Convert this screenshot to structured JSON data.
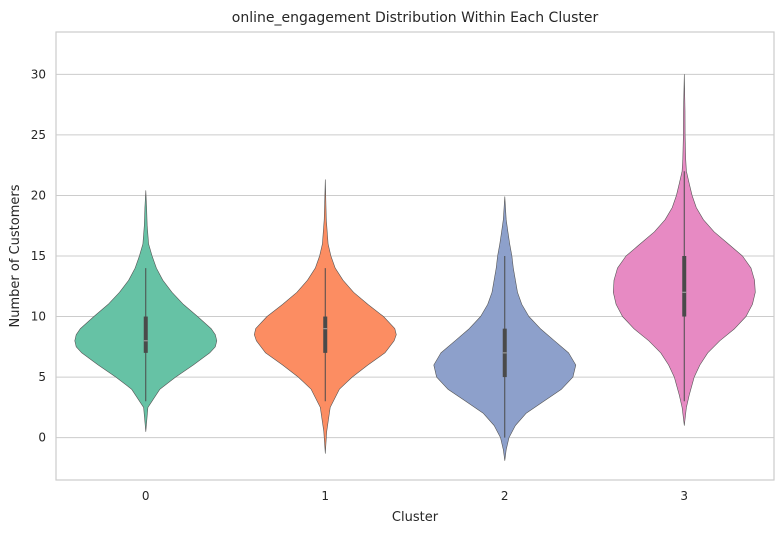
{
  "chart_data": {
    "type": "violin",
    "title": "online_engagement Distribution Within Each Cluster",
    "xlabel": "Cluster",
    "ylabel": "Number of Customers",
    "categories": [
      "0",
      "1",
      "2",
      "3"
    ],
    "ylim": [
      -3.5,
      33.5
    ],
    "yticks": [
      0,
      5,
      10,
      15,
      20,
      25,
      30
    ],
    "grid": true,
    "legend": "none",
    "violins": [
      {
        "category": "0",
        "color": "#66c2a5",
        "box": {
          "q1": 7,
          "median": 8,
          "q3": 10,
          "whisker_low": 3,
          "whisker_high": 14
        },
        "profile": [
          [
            0.5,
            0
          ],
          [
            2.5,
            0.03
          ],
          [
            4,
            0.2
          ],
          [
            5,
            0.42
          ],
          [
            6,
            0.67
          ],
          [
            7,
            0.9
          ],
          [
            7.5,
            0.98
          ],
          [
            8,
            1
          ],
          [
            8.5,
            0.98
          ],
          [
            9,
            0.92
          ],
          [
            10,
            0.73
          ],
          [
            11,
            0.53
          ],
          [
            12,
            0.37
          ],
          [
            13,
            0.24
          ],
          [
            14,
            0.15
          ],
          [
            15,
            0.09
          ],
          [
            16,
            0.04
          ],
          [
            17.5,
            0.02
          ],
          [
            19,
            0.012
          ],
          [
            20.4,
            0
          ]
        ]
      },
      {
        "category": "1",
        "color": "#fc8d62",
        "box": {
          "q1": 7,
          "median": 9,
          "q3": 10,
          "whisker_low": 3,
          "whisker_high": 14
        },
        "profile": [
          [
            -1.3,
            0
          ],
          [
            0.5,
            0.02
          ],
          [
            2.5,
            0.07
          ],
          [
            4,
            0.2
          ],
          [
            5,
            0.38
          ],
          [
            6,
            0.6
          ],
          [
            7,
            0.84
          ],
          [
            8,
            0.97
          ],
          [
            8.5,
            1
          ],
          [
            9,
            0.98
          ],
          [
            10,
            0.82
          ],
          [
            11,
            0.6
          ],
          [
            12,
            0.4
          ],
          [
            13,
            0.25
          ],
          [
            14,
            0.14
          ],
          [
            15,
            0.08
          ],
          [
            16,
            0.04
          ],
          [
            18,
            0.015
          ],
          [
            21.3,
            0
          ]
        ]
      },
      {
        "category": "2",
        "color": "#8da0cb",
        "box": {
          "q1": 5,
          "median": 7,
          "q3": 9,
          "whisker_low": 0,
          "whisker_high": 15
        },
        "profile": [
          [
            -1.9,
            0
          ],
          [
            -1,
            0.02
          ],
          [
            0,
            0.06
          ],
          [
            1,
            0.15
          ],
          [
            2,
            0.3
          ],
          [
            3,
            0.55
          ],
          [
            4,
            0.8
          ],
          [
            5,
            0.96
          ],
          [
            6,
            1
          ],
          [
            7,
            0.9
          ],
          [
            8,
            0.7
          ],
          [
            9,
            0.5
          ],
          [
            10,
            0.34
          ],
          [
            11,
            0.24
          ],
          [
            12,
            0.18
          ],
          [
            13,
            0.15
          ],
          [
            14,
            0.12
          ],
          [
            15,
            0.1
          ],
          [
            16,
            0.07
          ],
          [
            17,
            0.045
          ],
          [
            18,
            0.02
          ],
          [
            19.9,
            0
          ]
        ]
      },
      {
        "category": "3",
        "color": "#e78ac3",
        "box": {
          "q1": 10,
          "median": 12,
          "q3": 15,
          "whisker_low": 3,
          "whisker_high": 22
        },
        "profile": [
          [
            1,
            0
          ],
          [
            2.5,
            0.03
          ],
          [
            3.5,
            0.07
          ],
          [
            5,
            0.14
          ],
          [
            6,
            0.22
          ],
          [
            7,
            0.33
          ],
          [
            8,
            0.5
          ],
          [
            9,
            0.71
          ],
          [
            10,
            0.87
          ],
          [
            11,
            0.96
          ],
          [
            12,
            1
          ],
          [
            13,
            0.99
          ],
          [
            14,
            0.94
          ],
          [
            15,
            0.82
          ],
          [
            16,
            0.62
          ],
          [
            17,
            0.42
          ],
          [
            18,
            0.27
          ],
          [
            19,
            0.17
          ],
          [
            20,
            0.11
          ],
          [
            21,
            0.07
          ],
          [
            22,
            0.03
          ],
          [
            23,
            0.02
          ],
          [
            25,
            0.012
          ],
          [
            27,
            0.01
          ],
          [
            30,
            0
          ]
        ]
      }
    ]
  }
}
